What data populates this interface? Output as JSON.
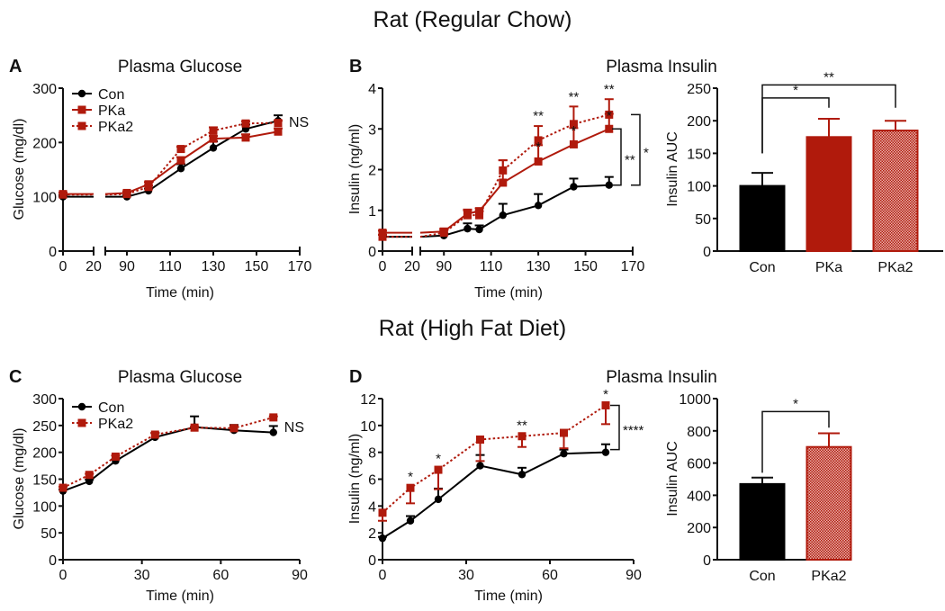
{
  "headers": {
    "row1": "Rat (Regular Chow)",
    "row2": "Rat (High Fat Diet)"
  },
  "colors": {
    "con": "#000000",
    "pka": "#b01a0c"
  },
  "chart_data": [
    {
      "type": "line",
      "panel": "A",
      "title": "Plasma Glucose",
      "xlabel": "Time (min)",
      "ylabel": "Glucose (mg/dl)",
      "ylim": [
        0,
        300
      ],
      "yticks": [
        0,
        100,
        200,
        300
      ],
      "xticks": [
        0,
        20,
        90,
        110,
        130,
        150,
        170
      ],
      "x_axis_break": [
        20,
        80
      ],
      "series": [
        {
          "name": "Con",
          "color": "#000000",
          "style": "solid",
          "marker": "circle",
          "err_dir": "up",
          "x": [
            0,
            90,
            100,
            115,
            130,
            145,
            160
          ],
          "y": [
            100,
            100,
            111,
            152,
            190,
            225,
            240
          ],
          "err": [
            3,
            3,
            4,
            8,
            12,
            8,
            10
          ]
        },
        {
          "name": "PKa",
          "color": "#b01a0c",
          "style": "solid",
          "marker": "square",
          "err_dir": "up",
          "x": [
            0,
            90,
            100,
            115,
            130,
            145,
            160
          ],
          "y": [
            105,
            107,
            123,
            167,
            207,
            209,
            220
          ],
          "err": [
            3,
            3,
            4,
            6,
            5,
            6,
            6
          ]
        },
        {
          "name": "PKa2",
          "color": "#b01a0c",
          "style": "dotted",
          "marker": "square",
          "err_dir": "up",
          "x": [
            0,
            90,
            100,
            115,
            130,
            145,
            160
          ],
          "y": [
            104,
            105,
            118,
            188,
            222,
            235,
            236
          ],
          "err": [
            3,
            3,
            3,
            4,
            6,
            4,
            4
          ]
        }
      ],
      "annotations": [],
      "brackets": [],
      "ns_label": {
        "x": 160,
        "y": 240,
        "text": "NS"
      },
      "legend": "top-left"
    },
    {
      "type": "line",
      "panel": "B",
      "title": "Plasma Insulin",
      "xlabel": "Time (min)",
      "ylabel": "Insulin (ng/ml)",
      "ylim": [
        0,
        4
      ],
      "yticks": [
        0,
        1,
        2,
        3,
        4
      ],
      "xticks": [
        0,
        20,
        90,
        110,
        130,
        150,
        170
      ],
      "x_axis_break": [
        20,
        80
      ],
      "series": [
        {
          "name": "Con",
          "color": "#000000",
          "style": "solid",
          "marker": "circle",
          "err_dir": "up",
          "x": [
            0,
            90,
            100,
            105,
            115,
            130,
            145,
            160
          ],
          "y": [
            0.35,
            0.38,
            0.55,
            0.53,
            0.88,
            1.12,
            1.58,
            1.62
          ],
          "err": [
            0.05,
            0.05,
            0.13,
            0.1,
            0.28,
            0.28,
            0.2,
            0.2
          ]
        },
        {
          "name": "PKa",
          "color": "#b01a0c",
          "style": "solid",
          "marker": "square",
          "err_dir": "up",
          "x": [
            0,
            90,
            100,
            105,
            115,
            130,
            145,
            160
          ],
          "y": [
            0.45,
            0.48,
            0.92,
            0.98,
            1.68,
            2.2,
            2.62,
            3.0
          ],
          "err": [
            0.05,
            0.07,
            0.1,
            0.07,
            0.55,
            0.4,
            0.4,
            0.37
          ]
        },
        {
          "name": "PKa2",
          "color": "#b01a0c",
          "style": "dotted",
          "marker": "square",
          "err_dir": "up",
          "x": [
            0,
            90,
            100,
            105,
            115,
            130,
            145,
            160
          ],
          "y": [
            0.35,
            0.45,
            0.88,
            0.88,
            1.98,
            2.72,
            3.12,
            3.35
          ],
          "err": [
            0.05,
            0.07,
            0.12,
            0.1,
            0.25,
            0.35,
            0.43,
            0.38
          ]
        }
      ],
      "annotations": [
        {
          "x": 130,
          "y": 3.22,
          "text": "**"
        },
        {
          "x": 145,
          "y": 3.68,
          "text": "**"
        },
        {
          "x": 160,
          "y": 3.87,
          "text": "**"
        },
        {
          "x": 130,
          "y": 2.45,
          "text": "*"
        },
        {
          "x": 145,
          "y": 2.85,
          "text": "*"
        },
        {
          "x": 160,
          "y": 3.22,
          "text": "*"
        }
      ],
      "brackets": [
        {
          "text": "**",
          "y_from": 3.0,
          "y_to": 1.62
        },
        {
          "text": "*",
          "y_from": 3.35,
          "y_to": 1.62
        }
      ],
      "ns_label": null,
      "legend": "none"
    },
    {
      "type": "bar",
      "panel": "B-AUC",
      "ylabel": "Insulin AUC",
      "ylim": [
        0,
        250
      ],
      "yticks": [
        0,
        50,
        100,
        150,
        200,
        250
      ],
      "categories": [
        "Con",
        "PKa",
        "PKa2"
      ],
      "values": [
        100,
        175,
        185
      ],
      "err": [
        20,
        28,
        15
      ],
      "fills": [
        "solid-black",
        "solid-red",
        "hatched-red"
      ],
      "sig": [
        {
          "from": 0,
          "to": 1,
          "text": "*",
          "level": 235,
          "drop_left": 150,
          "drop_right": 220
        },
        {
          "from": 0,
          "to": 2,
          "text": "**",
          "level": 255,
          "drop_left": 150,
          "drop_right": 220
        }
      ]
    },
    {
      "type": "line",
      "panel": "C",
      "title": "Plasma Glucose",
      "xlabel": "Time (min)",
      "ylabel": "Glucose (mg/dl)",
      "ylim": [
        0,
        300
      ],
      "yticks": [
        0,
        50,
        100,
        150,
        200,
        250,
        300
      ],
      "xticks": [
        0,
        30,
        60,
        90
      ],
      "series": [
        {
          "name": "Con",
          "color": "#000000",
          "style": "solid",
          "marker": "circle",
          "err_dir": "up",
          "x": [
            0,
            10,
            20,
            35,
            50,
            65,
            80
          ],
          "y": [
            128,
            146,
            184,
            228,
            247,
            241,
            237
          ],
          "err": [
            3,
            3,
            3,
            8,
            20,
            10,
            12
          ]
        },
        {
          "name": "PKa2",
          "color": "#b01a0c",
          "style": "dotted",
          "marker": "square",
          "err_dir": "up",
          "x": [
            0,
            10,
            20,
            35,
            50,
            65,
            80
          ],
          "y": [
            134,
            158,
            192,
            233,
            246,
            245,
            265
          ],
          "err": [
            2,
            2,
            2,
            3,
            2,
            3,
            2
          ]
        }
      ],
      "annotations": [],
      "brackets": [],
      "ns_label": {
        "x": 80,
        "y": 250,
        "text": "NS"
      },
      "legend": "top-left"
    },
    {
      "type": "line",
      "panel": "D",
      "title": "Plasma Insulin",
      "xlabel": "Time (min)",
      "ylabel": "Insulin (ng/ml)",
      "ylim": [
        0,
        12
      ],
      "yticks": [
        0,
        2,
        4,
        6,
        8,
        10,
        12
      ],
      "xticks": [
        0,
        30,
        60,
        90
      ],
      "series": [
        {
          "name": "Con",
          "color": "#000000",
          "style": "solid",
          "marker": "circle",
          "err_dir": "up",
          "x": [
            0,
            10,
            20,
            35,
            50,
            65,
            80
          ],
          "y": [
            1.6,
            2.9,
            4.5,
            7.0,
            6.35,
            7.9,
            8.0
          ],
          "err": [
            0.1,
            0.35,
            0.8,
            0.8,
            0.5,
            0.3,
            0.6
          ]
        },
        {
          "name": "PKa2",
          "color": "#b01a0c",
          "style": "dotted",
          "marker": "square",
          "err_dir": "down",
          "x": [
            0,
            10,
            20,
            35,
            50,
            65,
            80
          ],
          "y": [
            3.5,
            5.35,
            6.7,
            8.95,
            9.2,
            9.45,
            11.5
          ],
          "err": [
            0.6,
            1.15,
            1.45,
            1.6,
            0.8,
            1.15,
            1.4
          ]
        }
      ],
      "annotations": [
        {
          "x": 10,
          "y": 5.85,
          "text": "*"
        },
        {
          "x": 20,
          "y": 7.2,
          "text": "*"
        },
        {
          "x": 50,
          "y": 9.7,
          "text": "**"
        },
        {
          "x": 80,
          "y": 12.0,
          "text": "*"
        }
      ],
      "brackets": [
        {
          "text": "****",
          "y_from": 11.5,
          "y_to": 8.2
        }
      ],
      "ns_label": null,
      "legend": "none"
    },
    {
      "type": "bar",
      "panel": "D-AUC",
      "ylabel": "Insulin AUC",
      "ylim": [
        0,
        1000
      ],
      "yticks": [
        0,
        200,
        400,
        600,
        800,
        1000
      ],
      "categories": [
        "Con",
        "PKa2"
      ],
      "values": [
        470,
        700
      ],
      "err": [
        40,
        85
      ],
      "fills": [
        "solid-black",
        "hatched-red"
      ],
      "sig": [
        {
          "from": 0,
          "to": 1,
          "text": "*",
          "level": 920,
          "drop_left": 540,
          "drop_right": 820
        }
      ]
    }
  ]
}
